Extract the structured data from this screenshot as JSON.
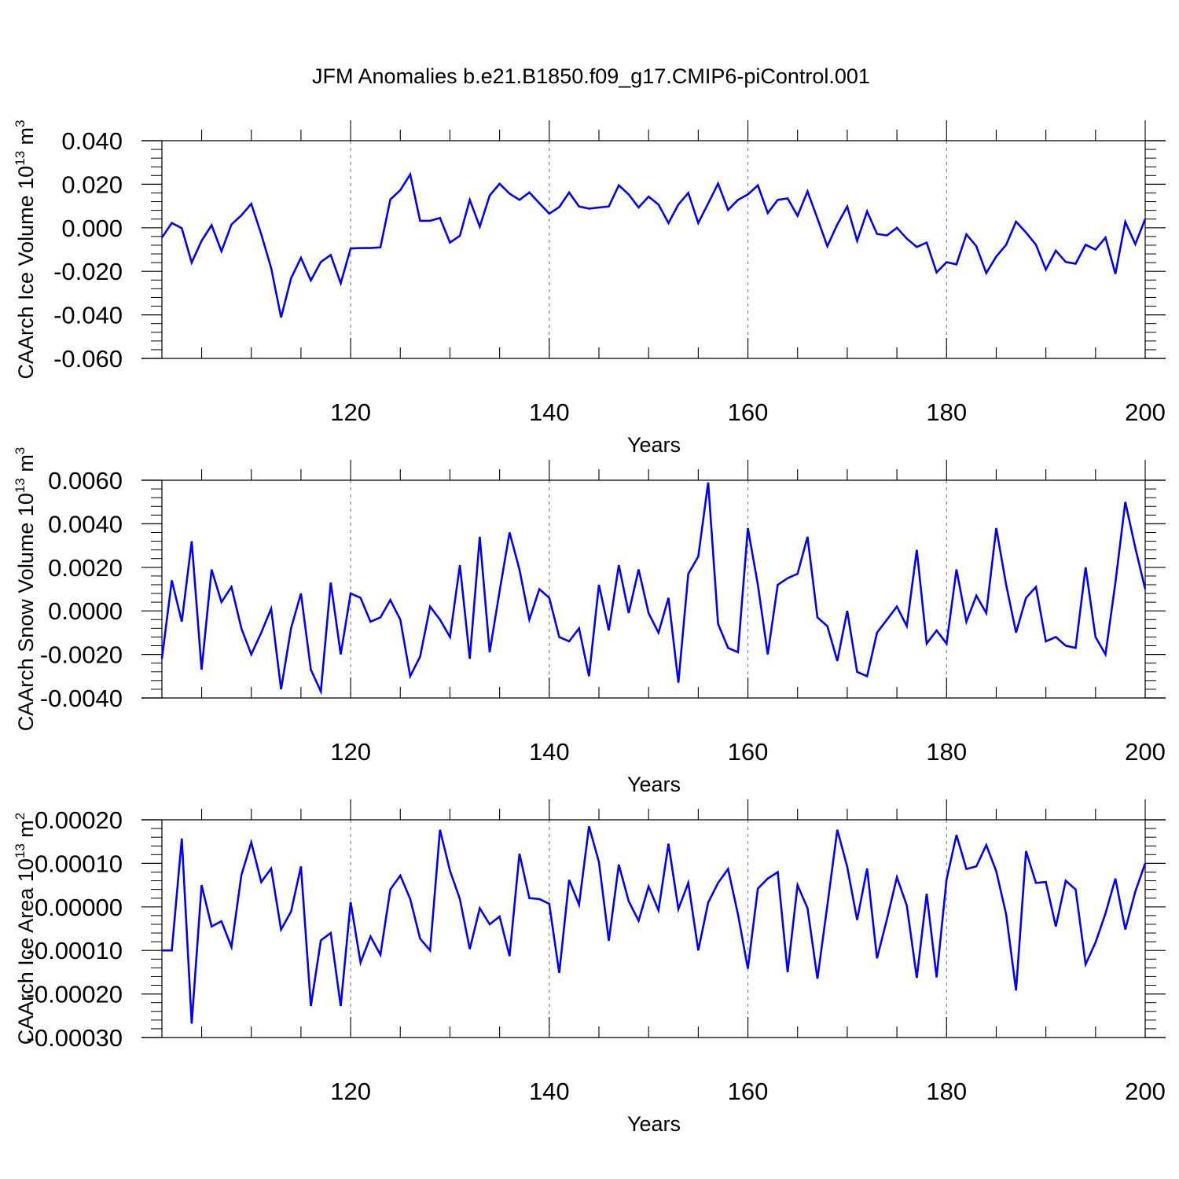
{
  "title": "JFM Anomalies b.e21.B1850.f09_g17.CMIP6-piControl.001",
  "colors": {
    "line": "#0000ff",
    "axis": "#000000",
    "grid": "#888888"
  },
  "chart_data": [
    {
      "type": "line",
      "xlabel": "Years",
      "ylabel": "CAArch Ice Volume 10",
      "ylabel_exp": "13",
      "ylabel_unit": " m",
      "ylabel_unit_exp": "3",
      "xlim": [
        101,
        200
      ],
      "ylim": [
        -0.06,
        0.04
      ],
      "yticks": [
        -0.06,
        -0.04,
        -0.02,
        0.0,
        0.02,
        0.04
      ],
      "ytick_labels": [
        "-0.060",
        "-0.040",
        "-0.020",
        "0.000",
        "0.020",
        "0.040"
      ],
      "xticks": [
        120,
        140,
        160,
        180,
        200
      ],
      "xtick_labels": [
        "120",
        "140",
        "160",
        "180",
        "200"
      ],
      "grid_x": [
        120,
        140,
        160,
        180
      ],
      "series": [
        {
          "name": "CAArch Ice Volume",
          "x_start": 101,
          "values": [
            -0.0045,
            0.0022,
            -0.0002,
            -0.016,
            -0.006,
            0.0012,
            -0.0108,
            0.0015,
            0.0057,
            0.011,
            -0.003,
            -0.0185,
            -0.0412,
            -0.0232,
            -0.0138,
            -0.0242,
            -0.0157,
            -0.0125,
            -0.0255,
            -0.0095,
            -0.0093,
            -0.0093,
            -0.009,
            0.013,
            0.0173,
            0.0245,
            0.0032,
            0.0032,
            0.0045,
            -0.0068,
            -0.0037,
            0.0128,
            0.0005,
            0.0148,
            0.0202,
            0.0157,
            0.0128,
            0.0162,
            0.0113,
            0.0065,
            0.0095,
            0.0162,
            0.0098,
            0.0088,
            0.0093,
            0.0098,
            0.0195,
            0.0153,
            0.0093,
            0.0143,
            0.0107,
            0.0022,
            0.0107,
            0.016,
            0.0022,
            0.0112,
            0.0203,
            0.0082,
            0.0128,
            0.0153,
            0.0195,
            0.0068,
            0.0128,
            0.0135,
            0.0055,
            0.0167,
            0.0043,
            -0.0085,
            0.0015,
            0.0098,
            -0.006,
            0.0075,
            -0.0028,
            -0.0035,
            0.0,
            -0.005,
            -0.0088,
            -0.0068,
            -0.0205,
            -0.0158,
            -0.0168,
            -0.003,
            -0.0085,
            -0.0208,
            -0.0132,
            -0.0078,
            0.0028,
            -0.0022,
            -0.0078,
            -0.0192,
            -0.0105,
            -0.0157,
            -0.0165,
            -0.0078,
            -0.01,
            -0.0045,
            -0.0212,
            0.0027,
            -0.0075,
            0.004
          ]
        }
      ]
    },
    {
      "type": "line",
      "xlabel": "Years",
      "ylabel": "CAArch Snow Volume 10",
      "ylabel_exp": "13",
      "ylabel_unit": " m",
      "ylabel_unit_exp": "3",
      "xlim": [
        101,
        200
      ],
      "ylim": [
        -0.004,
        0.006
      ],
      "yticks": [
        -0.004,
        -0.002,
        0.0,
        0.002,
        0.004,
        0.006
      ],
      "ytick_labels": [
        "-0.0040",
        "-0.0020",
        "0.0000",
        "0.0020",
        "0.0040",
        "0.0060"
      ],
      "xticks": [
        120,
        140,
        160,
        180,
        200
      ],
      "xtick_labels": [
        "120",
        "140",
        "160",
        "180",
        "200"
      ],
      "grid_x": [
        120,
        140,
        160,
        180
      ],
      "series": [
        {
          "name": "CAArch Snow Volume",
          "x_start": 101,
          "values": [
            -0.0022,
            0.0014,
            -0.0005,
            0.0032,
            -0.0027,
            0.0019,
            0.0004,
            0.0011,
            -0.0008,
            -0.002,
            -0.001,
            0.0001,
            -0.0036,
            -0.0008,
            0.0008,
            -0.0027,
            -0.0037,
            0.0013,
            -0.002,
            0.0008,
            0.0006,
            -0.0005,
            -0.0003,
            0.0005,
            -0.0004,
            -0.003,
            -0.0021,
            0.0002,
            -0.0004,
            -0.0012,
            0.0021,
            -0.0022,
            0.0034,
            -0.0019,
            0.0009,
            0.0036,
            0.0019,
            -0.0004,
            0.001,
            0.0006,
            -0.0012,
            -0.0014,
            -0.0008,
            -0.003,
            0.0012,
            -0.0009,
            0.0021,
            -0.0001,
            0.0019,
            -0.0001,
            -0.001,
            0.0006,
            -0.0033,
            0.0017,
            0.0025,
            0.0059,
            -0.0006,
            -0.0017,
            -0.0019,
            0.0038,
            0.0012,
            -0.002,
            0.0012,
            0.0015,
            0.0017,
            0.0034,
            -0.0003,
            -0.0007,
            -0.0023,
            0.0,
            -0.0028,
            -0.003,
            -0.001,
            -0.0004,
            0.0002,
            -0.0007,
            0.0028,
            -0.0015,
            -0.0009,
            -0.0015,
            0.0019,
            -0.0005,
            0.0007,
            -0.0001,
            0.0038,
            0.0012,
            -0.001,
            0.0006,
            0.0011,
            -0.0014,
            -0.0012,
            -0.0016,
            -0.0017,
            0.002,
            -0.0012,
            -0.002,
            0.0013,
            0.005,
            0.0029,
            0.001
          ]
        }
      ]
    },
    {
      "type": "line",
      "xlabel": "Years",
      "ylabel": "CAArch Ice Area 10",
      "ylabel_exp": "13",
      "ylabel_unit": " m",
      "ylabel_unit_exp": "2",
      "xlim": [
        101,
        200
      ],
      "ylim": [
        -0.0003,
        0.0002
      ],
      "yticks": [
        -0.0003,
        -0.0002,
        -0.0001,
        0.0,
        0.0001,
        0.0002
      ],
      "ytick_labels": [
        "-0.00030",
        "-0.00020",
        "-0.00010",
        "0.00000",
        "0.00010",
        "0.00020"
      ],
      "xticks": [
        120,
        140,
        160,
        180,
        200
      ],
      "xtick_labels": [
        "120",
        "140",
        "160",
        "180",
        "200"
      ],
      "grid_x": [
        120,
        140,
        160,
        180
      ],
      "series": [
        {
          "name": "CAArch Ice Area",
          "x_start": 101,
          "values": [
            -0.0001,
            -0.0001,
            0.000157,
            -0.000268,
            5e-05,
            -4.5e-05,
            -3.3e-05,
            -9.2e-05,
            7.3e-05,
            0.000148,
            5.7e-05,
            8.8e-05,
            -5.2e-05,
            -1.1e-05,
            9.3e-05,
            -0.000228,
            -7.7e-05,
            -6e-05,
            -0.000228,
            1.1e-05,
            -0.000128,
            -6.8e-05,
            -0.00011,
            4e-05,
            7.2e-05,
            1.8e-05,
            -7.3e-05,
            -0.0001,
            0.000177,
            8.3e-05,
            1.8e-05,
            -9.7e-05,
            -3e-06,
            -4e-05,
            -2.2e-05,
            -0.000113,
            0.000122,
            2e-05,
            1.8e-05,
            7e-06,
            -0.000152,
            6.2e-05,
            5e-06,
            0.000185,
            0.000103,
            -7.8e-05,
            9.7e-05,
            1.3e-05,
            -3.2e-05,
            4.7e-05,
            -8e-06,
            0.000145,
            -5e-06,
            5.5e-05,
            -0.0001,
            1e-05,
            5.5e-05,
            8.7e-05,
            -1.7e-05,
            -0.000142,
            4.2e-05,
            6.5e-05,
            8e-05,
            -0.00015,
            5e-05,
            -3e-06,
            -0.000165,
            3e-06,
            0.000177,
            9.2e-05,
            -3e-05,
            8.8e-05,
            -0.000118,
            -2.8e-05,
            6.8e-05,
            3e-06,
            -0.000163,
            3e-05,
            -0.000162,
            6.3e-05,
            0.000165,
            8.7e-05,
            9.3e-05,
            0.000142,
            8.2e-05,
            -1.7e-05,
            -0.000192,
            0.000128,
            5.5e-05,
            5.7e-05,
            -4.5e-05,
            6e-05,
            4e-05,
            -0.000132,
            -8.2e-05,
            -1.5e-05,
            6.5e-05,
            -5.2e-05,
            3.5e-05,
            0.0001
          ]
        }
      ]
    }
  ]
}
